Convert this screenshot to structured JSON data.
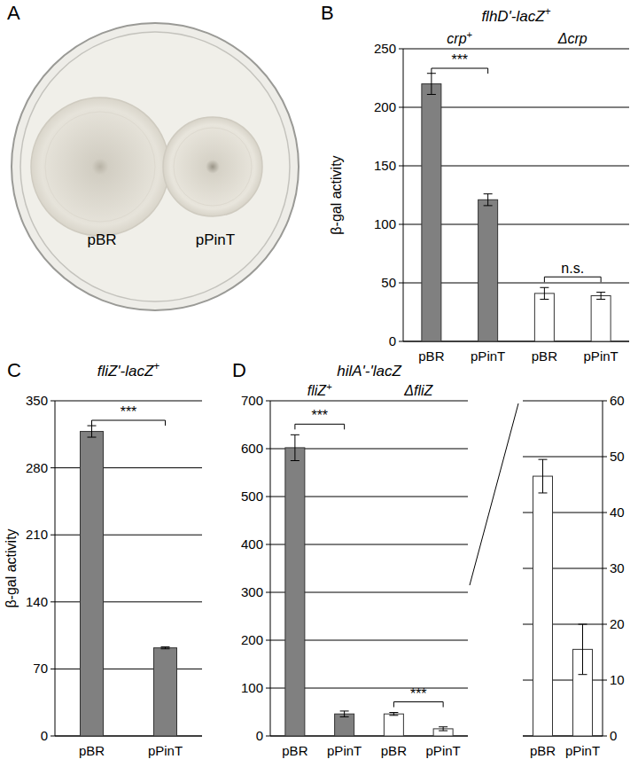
{
  "panels": {
    "labels": [
      "A",
      "B",
      "C",
      "D"
    ]
  },
  "plate": {
    "labels": [
      "pBR",
      "pPinT"
    ]
  },
  "chart_data": [
    {
      "type": "bar",
      "title": "flhD'-lacZ+",
      "categories": [
        "pBR",
        "pPinT",
        "pBR",
        "pPinT"
      ],
      "values": [
        220,
        121,
        41,
        39
      ],
      "errors": [
        9,
        5,
        5,
        3
      ],
      "colors": [
        "#808080",
        "#808080",
        "#ffffff",
        "#ffffff"
      ],
      "ylabel": "β-gal activity",
      "ylim": [
        0,
        250
      ],
      "yticks": [
        0,
        50,
        100,
        150,
        200,
        250
      ],
      "grid": true,
      "groups": [
        {
          "label": "crp+",
          "start": 0,
          "end": 1,
          "significance": "***"
        },
        {
          "label": "Δcrp",
          "start": 2,
          "end": 3,
          "significance": "n.s."
        }
      ]
    },
    {
      "type": "bar",
      "title": "fliZ'-lacZ+",
      "categories": [
        "pBR",
        "pPinT"
      ],
      "values": [
        318,
        92
      ],
      "errors": [
        6,
        1
      ],
      "colors": [
        "#808080",
        "#808080"
      ],
      "ylabel": "β-gal activity",
      "ylim": [
        0,
        350
      ],
      "yticks": [
        0,
        70,
        140,
        210,
        280,
        350
      ],
      "grid": true,
      "groups": [
        {
          "start": 0,
          "end": 1,
          "significance": "***"
        }
      ]
    },
    {
      "type": "bar",
      "title": "hilA'-'lacZ",
      "categories": [
        "pBR",
        "pPinT",
        "pBR",
        "pPinT"
      ],
      "values": [
        602,
        46,
        46,
        15
      ],
      "errors": [
        27,
        6,
        3,
        4
      ],
      "colors": [
        "#808080",
        "#808080",
        "#ffffff",
        "#ffffff"
      ],
      "ylim": [
        0,
        700
      ],
      "yticks": [
        0,
        100,
        200,
        300,
        400,
        500,
        600,
        700
      ],
      "grid": true,
      "groups": [
        {
          "label": "fliZ+",
          "start": 0,
          "end": 1,
          "significance": "***"
        },
        {
          "label": "ΔfliZ",
          "start": 2,
          "end": 3,
          "significance": "***"
        }
      ]
    },
    {
      "type": "bar",
      "categories": [
        "pBR",
        "pPinT"
      ],
      "values": [
        46.5,
        15.5
      ],
      "errors": [
        3,
        4.5
      ],
      "colors": [
        "#ffffff",
        "#ffffff"
      ],
      "ylim": [
        0,
        60
      ],
      "yticks": [
        0,
        10,
        20,
        30,
        40,
        50,
        60
      ],
      "grid": true
    }
  ]
}
